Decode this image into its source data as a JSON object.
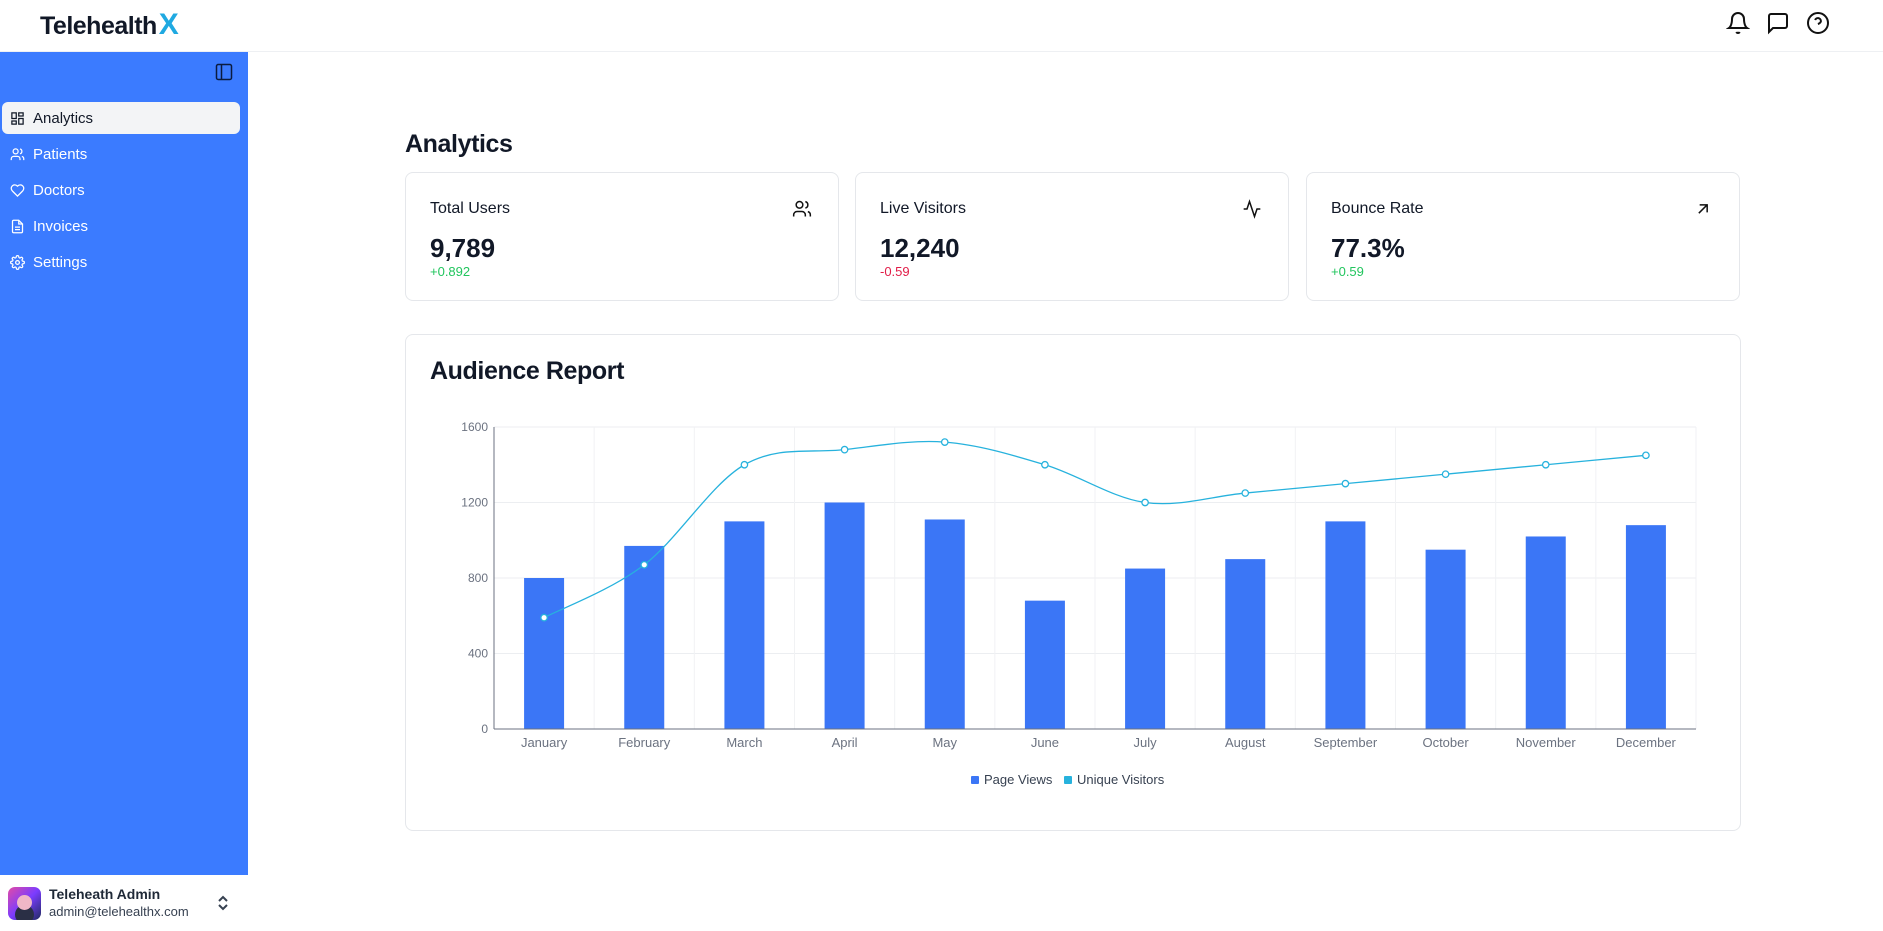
{
  "app": {
    "logo_text": "Telehealth",
    "logo_accent": "X"
  },
  "topbar": {
    "icons": [
      "bell-icon",
      "message-icon",
      "help-icon"
    ]
  },
  "sidebar": {
    "items": [
      {
        "label": "Analytics",
        "icon": "dashboard-icon",
        "active": true
      },
      {
        "label": "Patients",
        "icon": "users-icon"
      },
      {
        "label": "Doctors",
        "icon": "heart-icon"
      },
      {
        "label": "Invoices",
        "icon": "file-icon"
      },
      {
        "label": "Settings",
        "icon": "gear-icon"
      }
    ],
    "user": {
      "name": "Teleheath Admin",
      "email": "admin@telehealthx.com"
    }
  },
  "page": {
    "title": "Analytics"
  },
  "cards": [
    {
      "label": "Total Users",
      "value": "9,789",
      "delta": "+0.892",
      "trend": "up",
      "icon": "users-icon"
    },
    {
      "label": "Live Visitors",
      "value": "12,240",
      "delta": "-0.59",
      "trend": "down",
      "icon": "activity-icon"
    },
    {
      "label": "Bounce Rate",
      "value": "77.3%",
      "delta": "+0.59",
      "trend": "up",
      "icon": "arrow-up-right-icon"
    }
  ],
  "report": {
    "title": "Audience Report"
  },
  "colors": {
    "accent": "#3b7bff",
    "bar": "#3b76f6",
    "line": "#27b2dd",
    "up": "#22c55e",
    "down": "#e11d48"
  },
  "chart_data": {
    "type": "bar",
    "categories": [
      "January",
      "February",
      "March",
      "April",
      "May",
      "June",
      "July",
      "August",
      "September",
      "October",
      "November",
      "December"
    ],
    "series": [
      {
        "name": "Page Views",
        "type": "bar",
        "values": [
          800,
          970,
          1100,
          1200,
          1110,
          680,
          850,
          900,
          1100,
          950,
          1020,
          1080
        ]
      },
      {
        "name": "Unique Visitors",
        "type": "line",
        "values": [
          590,
          870,
          1400,
          1480,
          1520,
          1400,
          1200,
          1250,
          1300,
          1350,
          1400,
          1450
        ]
      }
    ],
    "yticks": [
      0,
      400,
      800,
      1200,
      1600
    ],
    "ylim": [
      0,
      1600
    ],
    "grid": true,
    "legend": "bottom-center"
  }
}
